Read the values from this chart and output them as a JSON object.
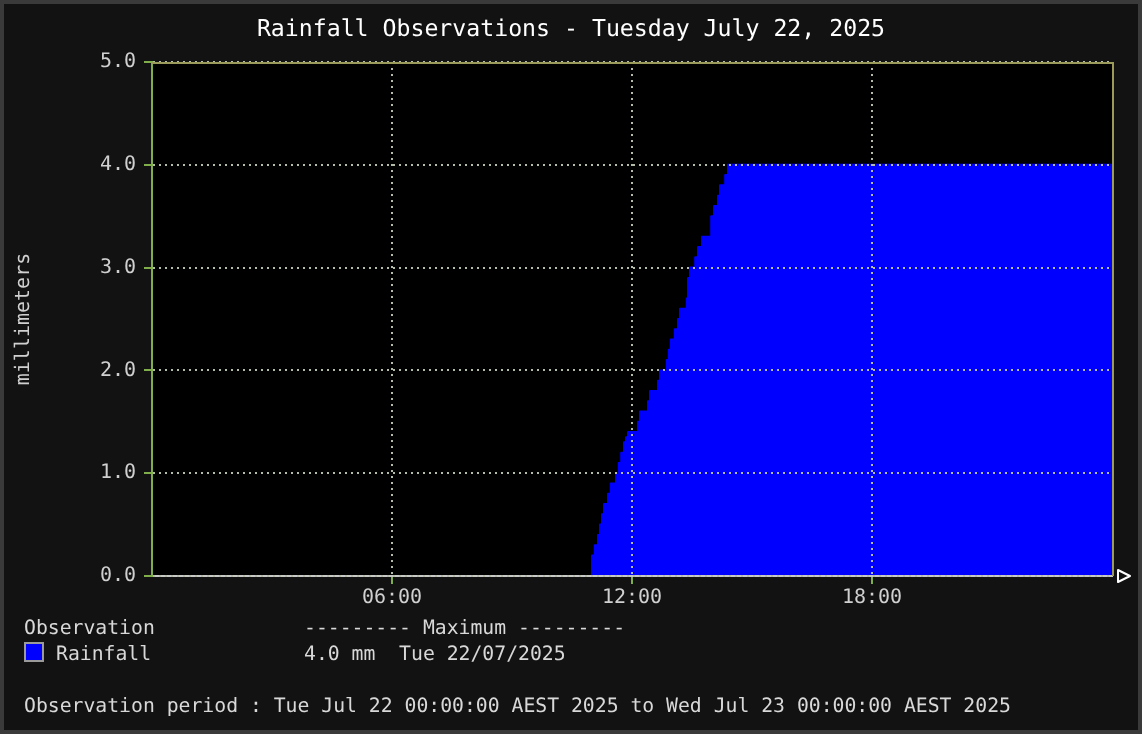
{
  "chart_data": {
    "type": "area",
    "title": "Rainfall Observations - Tuesday July 22, 2025",
    "ylabel": "millimeters",
    "legend_title": "Observation",
    "x": [
      0,
      10.95,
      11.0,
      11.07,
      11.15,
      11.2,
      11.25,
      11.3,
      11.4,
      11.47,
      11.6,
      11.67,
      11.73,
      11.8,
      11.85,
      11.9,
      12.15,
      12.2,
      12.4,
      12.45,
      12.65,
      12.7,
      12.87,
      12.92,
      12.97,
      13.07,
      13.15,
      13.2,
      13.37,
      13.4,
      13.45,
      13.58,
      13.65,
      13.75,
      13.98,
      14.05,
      14.15,
      14.2,
      14.33,
      14.4,
      24
    ],
    "series": [
      {
        "name": "Rainfall",
        "color": "#0000ff",
        "values": [
          0,
          0,
          0.2,
          0.3,
          0.4,
          0.5,
          0.6,
          0.7,
          0.8,
          0.9,
          1.0,
          1.1,
          1.2,
          1.3,
          1.35,
          1.4,
          1.5,
          1.6,
          1.7,
          1.8,
          1.9,
          2.0,
          2.1,
          2.2,
          2.3,
          2.4,
          2.5,
          2.6,
          2.7,
          2.9,
          3.0,
          3.1,
          3.2,
          3.3,
          3.5,
          3.6,
          3.7,
          3.8,
          3.9,
          4.0,
          4.0
        ]
      }
    ],
    "xlim": [
      0,
      24
    ],
    "xticks": [
      {
        "value": 6,
        "label": "06:00"
      },
      {
        "value": 12,
        "label": "12:00"
      },
      {
        "value": 18,
        "label": "18:00"
      }
    ],
    "ylim": [
      0,
      5
    ],
    "yticks": [
      {
        "value": 0,
        "label": "0.0"
      },
      {
        "value": 1,
        "label": "1.0"
      },
      {
        "value": 2,
        "label": "2.0"
      },
      {
        "value": 3,
        "label": "3.0"
      },
      {
        "value": 4,
        "label": "4.0"
      },
      {
        "value": 5,
        "label": "5.0"
      }
    ],
    "grid": true,
    "legend": "bottom",
    "annotations": [
      "--------- Maximum ---------",
      "4.0 mm  Tue 22/07/2025",
      "Observation period : Tue Jul 22 00:00:00 AEST 2025 to Wed Jul 23 00:00:00 AEST 2025"
    ]
  }
}
